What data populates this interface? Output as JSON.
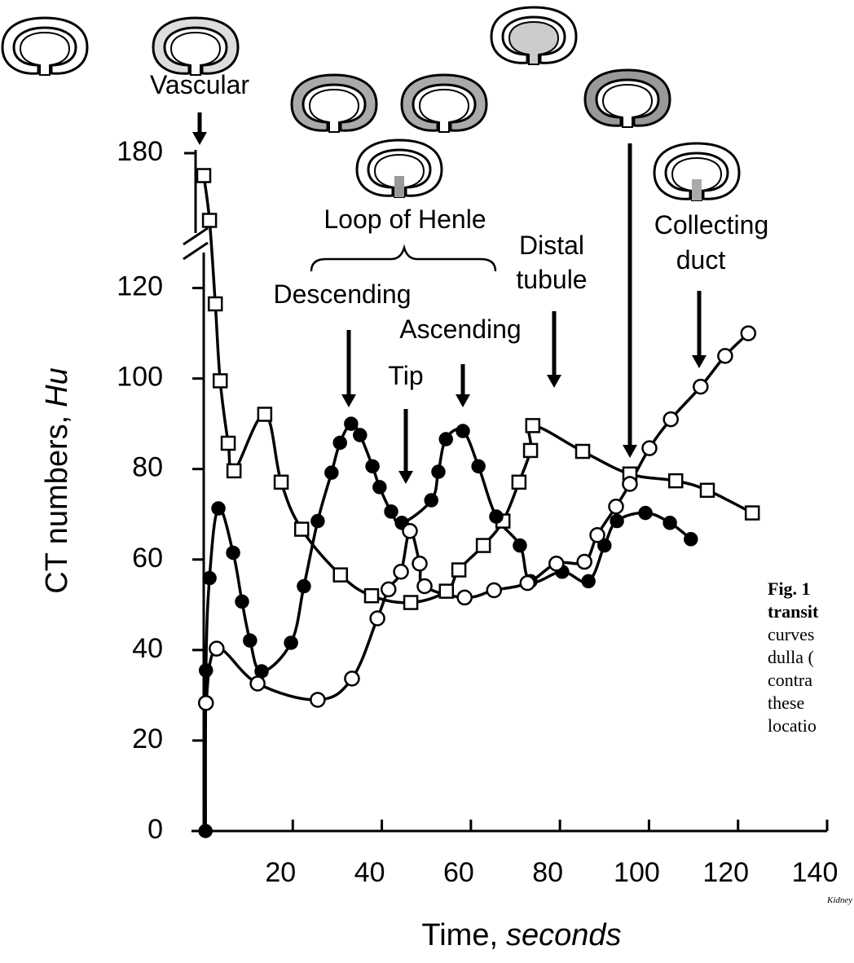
{
  "chart_data": {
    "type": "line",
    "xlabel": {
      "text": "Time,",
      "unit": "seconds"
    },
    "ylabel": {
      "text": "CT numbers,",
      "unit": "Hu"
    },
    "xlim": [
      0,
      140
    ],
    "xticks": [
      20,
      40,
      60,
      80,
      100,
      120,
      140
    ],
    "ylim": [
      0,
      180
    ],
    "yticks": [
      0,
      20,
      40,
      60,
      80,
      100,
      120,
      180
    ],
    "y_break": [
      130,
      160
    ],
    "series": [
      {
        "marker": "square",
        "color": "#000000",
        "x": [
          0,
          1.3,
          2.6,
          3.7,
          5.5,
          6.8,
          13.7,
          17.4,
          22,
          30.7,
          37.7,
          46.5,
          54.5,
          57.3,
          62.8,
          67.2,
          70.8,
          73.4,
          73.9,
          85.1,
          95.7,
          106,
          113.1,
          123.2
        ],
        "values": [
          175,
          165,
          116.5,
          99.5,
          85.7,
          79.6,
          92.1,
          77.1,
          66.7,
          56.6,
          52,
          50.5,
          53,
          57.7,
          63.1,
          68.5,
          77.1,
          84.1,
          89.6,
          83.9,
          78.9,
          77.4,
          75.3,
          70.3
        ]
      },
      {
        "marker": "filled-circle",
        "color": "#000000",
        "x": [
          0.4,
          0.5,
          1.3,
          3.3,
          6.6,
          8.6,
          10.4,
          13,
          19.6,
          22.5,
          25.6,
          28.7,
          30.6,
          33.1,
          35.1,
          37.9,
          39.5,
          42.1,
          44.5,
          51.1,
          52.7,
          54.4,
          58.2,
          61.7,
          65.7,
          71,
          73.4,
          80.5,
          86.4,
          90,
          92.8,
          99.2,
          104.7,
          109.4
        ],
        "values": [
          0,
          35.5,
          55.9,
          71.3,
          61.5,
          50.7,
          42.1,
          35.3,
          41.6,
          54.1,
          68.5,
          79.2,
          85.8,
          90,
          87.5,
          80.6,
          76,
          70.6,
          68.1,
          73.1,
          79.4,
          86.6,
          88.4,
          80.6,
          69.5,
          63.1,
          55.2,
          57.3,
          55.2,
          63.1,
          68.5,
          70.3,
          68.1,
          64.5
        ]
      },
      {
        "marker": "open-circle",
        "color": "#000000",
        "x": [
          0.5,
          2.9,
          12.1,
          25.6,
          33.3,
          39,
          41.5,
          44.3,
          46.3,
          48.5,
          49.6,
          58.6,
          65.2,
          72.7,
          79.2,
          85.5,
          88.4,
          92.6,
          95.7,
          100.1,
          104.9,
          111.6,
          117.1,
          122.3
        ],
        "values": [
          28.3,
          40.3,
          32.6,
          29,
          33.7,
          47,
          53.4,
          57.3,
          66.3,
          59.1,
          54.1,
          51.6,
          53.2,
          54.8,
          59.1,
          59.5,
          65.4,
          71.7,
          76.7,
          84.6,
          91,
          98.2,
          105,
          110
        ]
      }
    ],
    "annotations": [
      "Vascular",
      "Loop of Henle",
      "Descending",
      "Tip",
      "Ascending",
      "Distal",
      "tubule",
      "Collecting",
      "duct"
    ],
    "caption_lines": [
      "Fig. 1",
      "transit",
      "curves",
      "dulla (",
      "contra",
      "these",
      "locatio"
    ],
    "source": "Kidney"
  }
}
